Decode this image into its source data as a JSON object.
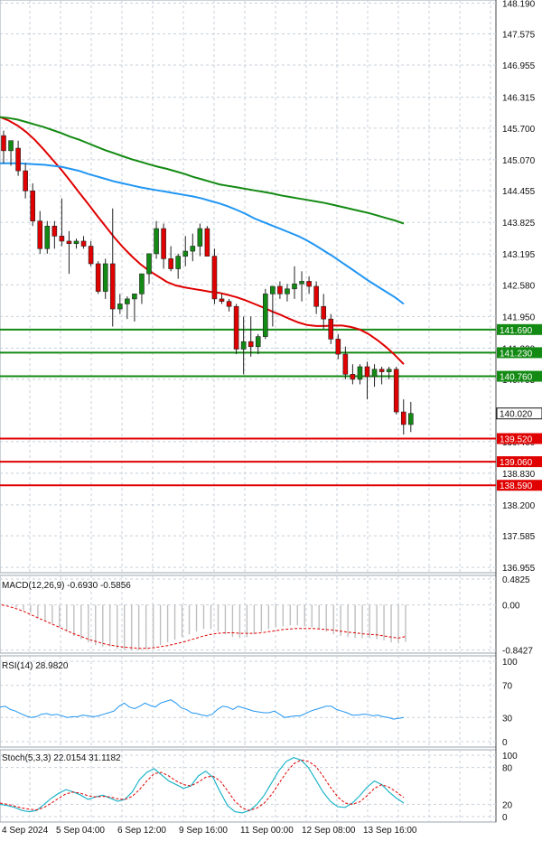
{
  "chart_data": [
    {
      "panel": "price",
      "type": "candlestick",
      "y_ticks": [
        "148.190",
        "147.575",
        "146.955",
        "146.315",
        "145.700",
        "145.070",
        "144.455",
        "143.825",
        "143.195",
        "142.580",
        "141.950"
      ],
      "ylim": [
        136.85,
        148.25
      ],
      "candles": [
        {
          "o": 145.55,
          "h": 145.65,
          "l": 145.0,
          "c": 145.25
        },
        {
          "o": 145.25,
          "h": 145.45,
          "l": 144.95,
          "c": 145.45
        },
        {
          "o": 145.3,
          "h": 145.45,
          "l": 144.75,
          "c": 144.85
        },
        {
          "o": 144.85,
          "h": 145.0,
          "l": 144.3,
          "c": 144.45
        },
        {
          "o": 144.45,
          "h": 144.6,
          "l": 143.75,
          "c": 143.85
        },
        {
          "o": 143.85,
          "h": 144.05,
          "l": 143.2,
          "c": 143.3
        },
        {
          "o": 143.3,
          "h": 143.85,
          "l": 143.2,
          "c": 143.75
        },
        {
          "o": 143.75,
          "h": 143.85,
          "l": 143.3,
          "c": 143.55
        },
        {
          "o": 143.55,
          "h": 144.3,
          "l": 143.35,
          "c": 143.45
        },
        {
          "o": 143.45,
          "h": 143.65,
          "l": 142.8,
          "c": 143.4
        },
        {
          "o": 143.4,
          "h": 143.5,
          "l": 143.3,
          "c": 143.45
        },
        {
          "o": 143.45,
          "h": 143.55,
          "l": 143.3,
          "c": 143.35
        },
        {
          "o": 143.35,
          "h": 143.45,
          "l": 142.95,
          "c": 143.0
        },
        {
          "o": 143.0,
          "h": 143.05,
          "l": 142.4,
          "c": 142.45
        },
        {
          "o": 142.45,
          "h": 143.1,
          "l": 142.3,
          "c": 143.0
        },
        {
          "o": 143.0,
          "h": 144.1,
          "l": 141.75,
          "c": 142.1
        },
        {
          "o": 142.1,
          "h": 142.4,
          "l": 142.0,
          "c": 142.2
        },
        {
          "o": 142.2,
          "h": 142.35,
          "l": 141.9,
          "c": 142.3
        },
        {
          "o": 142.3,
          "h": 142.4,
          "l": 141.85,
          "c": 142.4
        },
        {
          "o": 142.4,
          "h": 142.8,
          "l": 142.2,
          "c": 142.8
        },
        {
          "o": 142.8,
          "h": 143.2,
          "l": 142.6,
          "c": 143.2
        },
        {
          "o": 143.2,
          "h": 143.85,
          "l": 143.1,
          "c": 143.7
        },
        {
          "o": 143.7,
          "h": 143.8,
          "l": 142.9,
          "c": 143.1
        },
        {
          "o": 143.1,
          "h": 143.35,
          "l": 142.85,
          "c": 142.9
        },
        {
          "o": 142.9,
          "h": 143.2,
          "l": 142.7,
          "c": 143.15
        },
        {
          "o": 143.15,
          "h": 143.55,
          "l": 142.95,
          "c": 143.25
        },
        {
          "o": 143.25,
          "h": 143.6,
          "l": 143.05,
          "c": 143.35
        },
        {
          "o": 143.35,
          "h": 143.8,
          "l": 143.15,
          "c": 143.7
        },
        {
          "o": 143.7,
          "h": 143.75,
          "l": 143.2,
          "c": 143.15
        },
        {
          "o": 143.15,
          "h": 143.3,
          "l": 142.2,
          "c": 142.3
        },
        {
          "o": 142.3,
          "h": 142.4,
          "l": 142.2,
          "c": 142.25
        },
        {
          "o": 142.25,
          "h": 142.3,
          "l": 142.05,
          "c": 142.15
        },
        {
          "o": 142.15,
          "h": 142.2,
          "l": 141.2,
          "c": 141.3
        },
        {
          "o": 141.3,
          "h": 141.95,
          "l": 140.8,
          "c": 141.45
        },
        {
          "o": 141.45,
          "h": 141.95,
          "l": 141.15,
          "c": 141.35
        },
        {
          "o": 141.35,
          "h": 141.6,
          "l": 141.2,
          "c": 141.55
        },
        {
          "o": 141.55,
          "h": 142.5,
          "l": 141.5,
          "c": 142.4
        },
        {
          "o": 142.4,
          "h": 142.55,
          "l": 141.75,
          "c": 142.55
        },
        {
          "o": 142.55,
          "h": 142.65,
          "l": 142.3,
          "c": 142.4
        },
        {
          "o": 142.4,
          "h": 142.6,
          "l": 142.25,
          "c": 142.5
        },
        {
          "o": 142.5,
          "h": 142.95,
          "l": 142.3,
          "c": 142.6
        },
        {
          "o": 142.6,
          "h": 142.85,
          "l": 142.25,
          "c": 142.65
        },
        {
          "o": 142.65,
          "h": 142.75,
          "l": 142.4,
          "c": 142.55
        },
        {
          "o": 142.55,
          "h": 142.65,
          "l": 142.0,
          "c": 142.15
        },
        {
          "o": 142.15,
          "h": 142.4,
          "l": 141.7,
          "c": 141.9
        },
        {
          "o": 141.9,
          "h": 142.0,
          "l": 141.4,
          "c": 141.5
        },
        {
          "o": 141.5,
          "h": 141.6,
          "l": 141.1,
          "c": 141.2
        },
        {
          "o": 141.2,
          "h": 141.35,
          "l": 140.7,
          "c": 140.8
        },
        {
          "o": 140.8,
          "h": 141.0,
          "l": 140.6,
          "c": 140.7
        },
        {
          "o": 140.7,
          "h": 141.0,
          "l": 140.6,
          "c": 140.95
        },
        {
          "o": 140.95,
          "h": 141.05,
          "l": 140.3,
          "c": 140.75
        },
        {
          "o": 140.75,
          "h": 141.0,
          "l": 140.55,
          "c": 140.9
        },
        {
          "o": 140.9,
          "h": 140.95,
          "l": 140.6,
          "c": 140.85
        },
        {
          "o": 140.85,
          "h": 140.95,
          "l": 140.7,
          "c": 140.9
        },
        {
          "o": 140.9,
          "h": 140.95,
          "l": 140.0,
          "c": 140.05
        },
        {
          "o": 140.05,
          "h": 140.3,
          "l": 139.6,
          "c": 139.8
        },
        {
          "o": 139.8,
          "h": 140.25,
          "l": 139.65,
          "c": 140.02
        }
      ],
      "moving_averages": [
        {
          "color": "#e00000",
          "values": [
            145.92,
            145.85,
            145.75,
            145.62,
            145.46,
            145.27,
            145.07,
            144.87,
            144.65,
            144.42,
            144.2,
            143.97,
            143.75,
            143.53,
            143.33,
            143.15,
            142.99,
            142.86,
            142.75,
            142.64,
            142.57,
            142.53,
            142.5,
            142.47,
            142.44,
            142.42,
            142.38,
            142.33,
            142.27,
            142.2,
            142.13,
            142.05,
            141.98,
            141.9,
            141.83,
            141.78,
            141.76,
            141.76,
            141.77,
            141.77,
            141.74,
            141.69,
            141.6,
            141.48,
            141.34,
            141.18,
            141.0
          ]
        },
        {
          "color": "#2196f3",
          "values": [
            145.0,
            145.0,
            145.0,
            144.99,
            144.98,
            144.97,
            144.95,
            144.93,
            144.89,
            144.85,
            144.79,
            144.74,
            144.69,
            144.64,
            144.6,
            144.56,
            144.52,
            144.49,
            144.46,
            144.43,
            144.4,
            144.37,
            144.34,
            144.3,
            144.25,
            144.2,
            144.14,
            144.07,
            143.99,
            143.9,
            143.83,
            143.76,
            143.69,
            143.62,
            143.55,
            143.46,
            143.36,
            143.25,
            143.14,
            143.02,
            142.9,
            142.78,
            142.66,
            142.55,
            142.44,
            142.33,
            142.2
          ]
        },
        {
          "color": "#138a13",
          "values": [
            145.92,
            145.9,
            145.87,
            145.82,
            145.77,
            145.72,
            145.66,
            145.6,
            145.53,
            145.47,
            145.4,
            145.33,
            145.26,
            145.2,
            145.14,
            145.08,
            145.03,
            144.98,
            144.93,
            144.89,
            144.84,
            144.79,
            144.73,
            144.68,
            144.63,
            144.58,
            144.55,
            144.52,
            144.49,
            144.46,
            144.43,
            144.4,
            144.36,
            144.33,
            144.3,
            144.27,
            144.24,
            144.21,
            144.17,
            144.13,
            144.09,
            144.05,
            144.01,
            143.96,
            143.91,
            143.86,
            143.8
          ]
        }
      ],
      "levels": [
        {
          "value": 141.69,
          "label": "141.690",
          "color": "#138a13"
        },
        {
          "value": 141.23,
          "label": "141.230",
          "color": "#138a13"
        },
        {
          "value": 140.76,
          "label": "140.760",
          "color": "#138a13"
        },
        {
          "value": 139.52,
          "label": "139.520",
          "color": "#e00000"
        },
        {
          "value": 139.06,
          "label": "139.060",
          "color": "#e00000"
        },
        {
          "value": 138.59,
          "label": "138.590",
          "color": "#e00000"
        }
      ],
      "current_price": {
        "value": 140.02,
        "label": "140.020"
      },
      "dim_ticks": [
        {
          "value": 141.32,
          "label": "141.320"
        },
        {
          "value": 140.7,
          "label": "140.705"
        },
        {
          "value": 139.46,
          "label": "139.460"
        },
        {
          "value": 138.83,
          "label": "138.830"
        },
        {
          "value": 138.2,
          "label": "138.200"
        },
        {
          "value": 137.585,
          "label": "137.585"
        },
        {
          "value": 136.955,
          "label": "136.955"
        }
      ]
    },
    {
      "panel": "macd",
      "type": "bar+line",
      "title": "MACD(12,26,9) -0.6930 -0.5856",
      "y_ticks": [
        "0.4825",
        "0.00",
        "-0.8427"
      ],
      "ylim": [
        -0.9,
        0.55
      ],
      "histogram": [
        0.02,
        0.0,
        -0.05,
        -0.1,
        -0.15,
        -0.25,
        -0.3,
        -0.35,
        -0.42,
        -0.5,
        -0.58,
        -0.64,
        -0.7,
        -0.75,
        -0.78,
        -0.78,
        -0.82,
        -0.84,
        -0.84,
        -0.84,
        -0.82,
        -0.8,
        -0.75,
        -0.7,
        -0.65,
        -0.6,
        -0.55,
        -0.5,
        -0.45,
        -0.45,
        -0.5,
        -0.55,
        -0.6,
        -0.62,
        -0.6,
        -0.55,
        -0.5,
        -0.45,
        -0.42,
        -0.4,
        -0.38,
        -0.38,
        -0.4,
        -0.42,
        -0.45,
        -0.5,
        -0.55,
        -0.58,
        -0.6,
        -0.62,
        -0.62,
        -0.62,
        -0.64,
        -0.66,
        -0.7,
        -0.72,
        -0.69
      ],
      "signal": [
        0.0,
        -0.03,
        -0.07,
        -0.12,
        -0.18,
        -0.24,
        -0.3,
        -0.36,
        -0.42,
        -0.48,
        -0.54,
        -0.59,
        -0.64,
        -0.68,
        -0.72,
        -0.75,
        -0.77,
        -0.79,
        -0.8,
        -0.81,
        -0.81,
        -0.8,
        -0.78,
        -0.76,
        -0.73,
        -0.7,
        -0.66,
        -0.62,
        -0.58,
        -0.55,
        -0.53,
        -0.52,
        -0.52,
        -0.53,
        -0.53,
        -0.53,
        -0.52,
        -0.5,
        -0.48,
        -0.46,
        -0.45,
        -0.44,
        -0.44,
        -0.44,
        -0.45,
        -0.46,
        -0.47,
        -0.49,
        -0.51,
        -0.52,
        -0.54,
        -0.55,
        -0.56,
        -0.58,
        -0.6,
        -0.62,
        -0.59
      ]
    },
    {
      "panel": "rsi",
      "type": "line",
      "title": "RSI(14) 28.9820",
      "y_ticks": [
        "100",
        "70",
        "30",
        "0"
      ],
      "ylim": [
        0,
        100
      ],
      "values": [
        43,
        44,
        40,
        38,
        35,
        32,
        30,
        31,
        34,
        35,
        33,
        34,
        32,
        30,
        31,
        31,
        33,
        32,
        31,
        32,
        34,
        36,
        38,
        44,
        48,
        43,
        41,
        44,
        48,
        45,
        43,
        48,
        50,
        52,
        48,
        42,
        40,
        36,
        35,
        33,
        32,
        34,
        40,
        44,
        43,
        40,
        44,
        42,
        40,
        38,
        37,
        36,
        36,
        38,
        34,
        30,
        31,
        32,
        32,
        35,
        38,
        40,
        42,
        44,
        44,
        40,
        38,
        36,
        33,
        33,
        34,
        34,
        32,
        33,
        31,
        30,
        28,
        29,
        30
      ]
    },
    {
      "panel": "stoch",
      "type": "line",
      "title": "Stoch(5,3,3) 22.0154 31.1182",
      "y_ticks": [
        "100",
        "80",
        "20",
        "0"
      ],
      "ylim": [
        0,
        100
      ],
      "k_values": [
        20,
        18,
        15,
        10,
        8,
        10,
        20,
        30,
        38,
        44,
        40,
        35,
        28,
        32,
        35,
        30,
        25,
        28,
        40,
        60,
        72,
        78,
        68,
        58,
        52,
        46,
        50,
        66,
        74,
        64,
        40,
        18,
        8,
        6,
        10,
        20,
        35,
        55,
        75,
        90,
        96,
        92,
        80,
        60,
        40,
        25,
        16,
        15,
        22,
        34,
        48,
        58,
        52,
        40,
        30,
        22
      ],
      "d_values": [
        22,
        20,
        17,
        14,
        12,
        11,
        15,
        22,
        30,
        37,
        40,
        38,
        34,
        32,
        33,
        32,
        29,
        28,
        33,
        44,
        58,
        70,
        72,
        66,
        58,
        52,
        50,
        56,
        64,
        66,
        58,
        42,
        25,
        14,
        10,
        14,
        22,
        36,
        54,
        72,
        86,
        92,
        90,
        82,
        66,
        48,
        32,
        22,
        20,
        24,
        34,
        46,
        52,
        48,
        40,
        31
      ]
    }
  ],
  "x_labels": [
    "4 Sep 2024",
    "5 Sep 04:00",
    "6 Sep 12:00",
    "9 Sep 16:00",
    "11 Sep 00:00",
    "12 Sep 08:00",
    "13 Sep 16:00"
  ],
  "colors": {
    "bull": "#138a13",
    "bear": "#e00000",
    "grid": "#c8d0da",
    "axis_text": "#111111",
    "dim_text": "#777777",
    "histogram": "#bfbfbf"
  }
}
